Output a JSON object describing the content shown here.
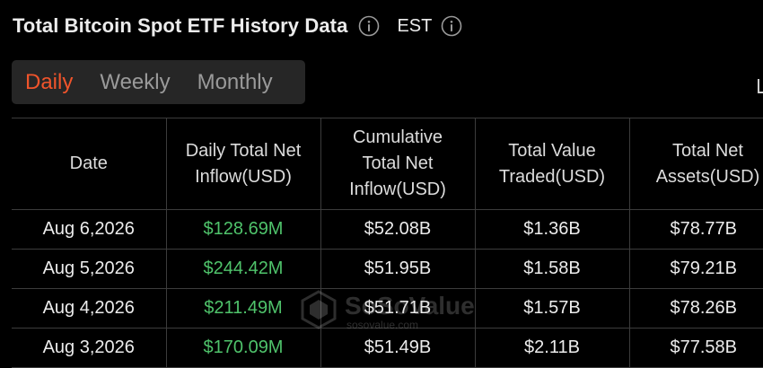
{
  "header": {
    "title": "Total Bitcoin Spot ETF History Data",
    "timezone": "EST"
  },
  "tabs": [
    {
      "label": "Daily",
      "active": true
    },
    {
      "label": "Weekly",
      "active": false
    },
    {
      "label": "Monthly",
      "active": false
    }
  ],
  "table": {
    "columns": [
      {
        "label": "Date"
      },
      {
        "label": "Daily Total Net Inflow(USD)"
      },
      {
        "label": "Cumulative Total Net Inflow(USD)"
      },
      {
        "label": "Total Value Traded(USD)"
      },
      {
        "label": "Total Net Assets(USD)"
      }
    ],
    "rows": [
      {
        "date": "Aug 6,2026",
        "daily_net_inflow": "$128.69M",
        "cumulative_net_inflow": "$52.08B",
        "value_traded": "$1.36B",
        "net_assets": "$78.77B"
      },
      {
        "date": "Aug 5,2026",
        "daily_net_inflow": "$244.42M",
        "cumulative_net_inflow": "$51.95B",
        "value_traded": "$1.58B",
        "net_assets": "$79.21B"
      },
      {
        "date": "Aug 4,2026",
        "daily_net_inflow": "$211.49M",
        "cumulative_net_inflow": "$51.71B",
        "value_traded": "$1.57B",
        "net_assets": "$78.26B"
      },
      {
        "date": "Aug 3,2026",
        "daily_net_inflow": "$170.09M",
        "cumulative_net_inflow": "$51.49B",
        "value_traded": "$2.11B",
        "net_assets": "$77.58B"
      }
    ]
  },
  "watermark": {
    "brand": "SoSoValue",
    "url": "sosovalue.com"
  },
  "colors": {
    "background": "#000000",
    "active_tab": "#f0542b",
    "positive_inflow": "#4fc36b",
    "tab_bar_bg": "#262626",
    "grid_line": "#3c3c3c"
  },
  "icons": {
    "title_info": "info-circle-icon",
    "timezone_info": "info-circle-icon",
    "watermark_logo": "sosovalue-logo-icon"
  }
}
